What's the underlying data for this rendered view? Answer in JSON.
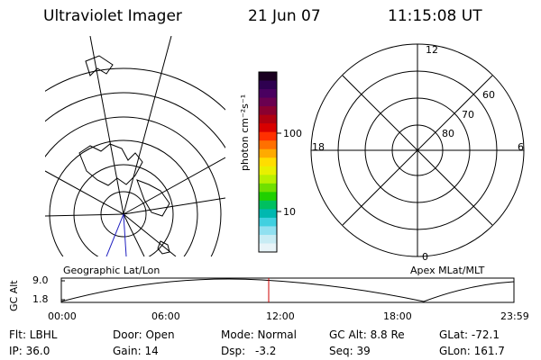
{
  "header": {
    "instrument": "Ultraviolet Imager",
    "date": "21 Jun 07",
    "time": "11:15:08 UT"
  },
  "colorbar": {
    "unit_label": "photon cm⁻²s⁻¹",
    "ticks": [
      "100",
      "10"
    ],
    "colors": [
      "#1a0020",
      "#2e0050",
      "#4a0060",
      "#6a0050",
      "#8a0030",
      "#b00010",
      "#d80000",
      "#ff3000",
      "#ff7000",
      "#ffaa00",
      "#ffdd00",
      "#e8f000",
      "#b8f000",
      "#70e000",
      "#20d000",
      "#00c060",
      "#00b8b0",
      "#40d0e0",
      "#90e0f0",
      "#c8ecf4",
      "#e8f4f8"
    ]
  },
  "left_panel": {
    "caption": "Geographic Lat/Lon"
  },
  "right_panel": {
    "caption": "Apex MLat/MLT",
    "mlt_labels": {
      "top": "12",
      "left": "18",
      "right": "6",
      "bottom": "0"
    },
    "lat_labels": [
      "60",
      "70",
      "80"
    ]
  },
  "altitude_plot": {
    "ylabel": "GC Alt",
    "yticks": [
      "9.0",
      "1.8"
    ],
    "xticks": [
      "00:00",
      "06:00",
      "12:00",
      "18:00",
      "23:59"
    ],
    "marker_color": "#cc0000"
  },
  "footer": {
    "row1": {
      "filter": "Flt: LBHL",
      "door": "Door: Open",
      "mode": "Mode: Normal",
      "gc_alt": "GC Alt: 8.8 Re",
      "glat": "GLat: -72.1"
    },
    "row2": {
      "ip": "IP: 36.0",
      "gain": "Gain: 14",
      "dsp_label": "Dsp:",
      "dsp_value": "-3.2",
      "seq": "Seq: 39",
      "glon": "GLon: 161.7"
    }
  }
}
